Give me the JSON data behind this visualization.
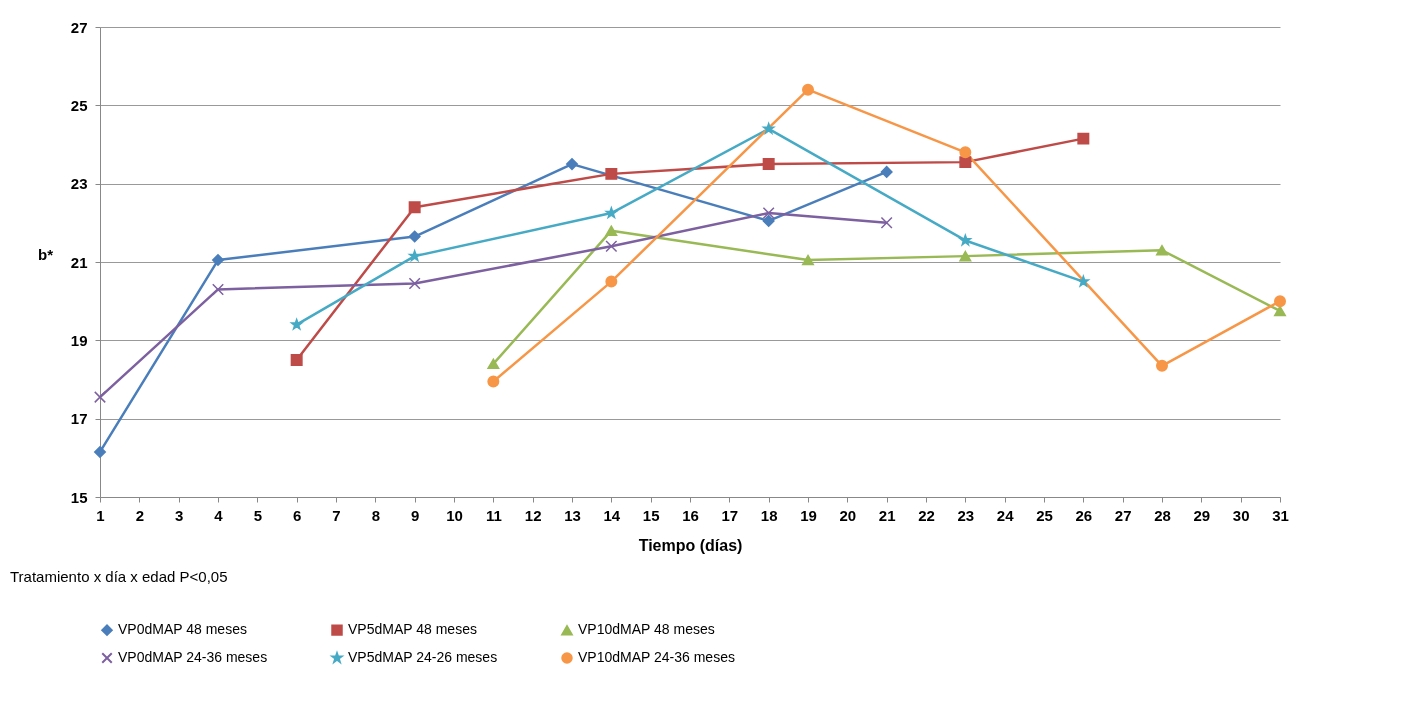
{
  "chart_data": {
    "type": "line",
    "xlabel": "Tiempo (días)",
    "ylabel": "b*",
    "annotations": [
      "Tratamiento x día x edad P<0,05"
    ],
    "xlim": [
      1,
      31
    ],
    "xticks": [
      1,
      2,
      3,
      4,
      5,
      6,
      7,
      8,
      9,
      10,
      11,
      12,
      13,
      14,
      15,
      16,
      17,
      18,
      19,
      20,
      21,
      22,
      23,
      24,
      25,
      26,
      27,
      28,
      29,
      30,
      31
    ],
    "ylim": [
      15,
      27
    ],
    "yticks": [
      15,
      17,
      19,
      21,
      23,
      25,
      27
    ],
    "grid": "y",
    "legend": "bottom",
    "line_style": "solid",
    "series": [
      {
        "name": "VP0dMAP 48 meses",
        "color": "#4a7ebb",
        "marker": "diamond",
        "x": [
          1,
          4,
          9,
          13,
          18,
          21
        ],
        "values": [
          16.15,
          21.05,
          21.65,
          23.5,
          22.05,
          23.3
        ]
      },
      {
        "name": "VP5dMAP 48 meses",
        "color": "#be4b48",
        "marker": "square",
        "x": [
          6,
          9,
          14,
          18,
          23,
          26
        ],
        "values": [
          18.5,
          22.4,
          23.25,
          23.5,
          23.55,
          24.15
        ]
      },
      {
        "name": "VP10dMAP 48 meses",
        "color": "#98b954",
        "marker": "triangle",
        "x": [
          11,
          14,
          19,
          23,
          28,
          31
        ],
        "values": [
          18.4,
          21.8,
          21.05,
          21.15,
          21.3,
          19.75
        ]
      },
      {
        "name": "VP0dMAP 24-36 meses",
        "color": "#7d60a0",
        "marker": "cross",
        "x": [
          1,
          4,
          9,
          14,
          18,
          21
        ],
        "values": [
          17.55,
          20.3,
          20.45,
          21.4,
          22.25,
          22.0
        ]
      },
      {
        "name": "VP5dMAP 24-26 meses",
        "color": "#46aac5",
        "marker": "star",
        "x": [
          6,
          9,
          14,
          18,
          23,
          26
        ],
        "values": [
          19.4,
          21.15,
          22.25,
          24.4,
          21.55,
          20.5
        ]
      },
      {
        "name": "VP10dMAP 24-36 meses",
        "color": "#f79646",
        "marker": "circle",
        "x": [
          11,
          14,
          19,
          23,
          28,
          31
        ],
        "values": [
          17.95,
          20.5,
          25.4,
          23.8,
          18.35,
          20.0
        ]
      }
    ]
  }
}
